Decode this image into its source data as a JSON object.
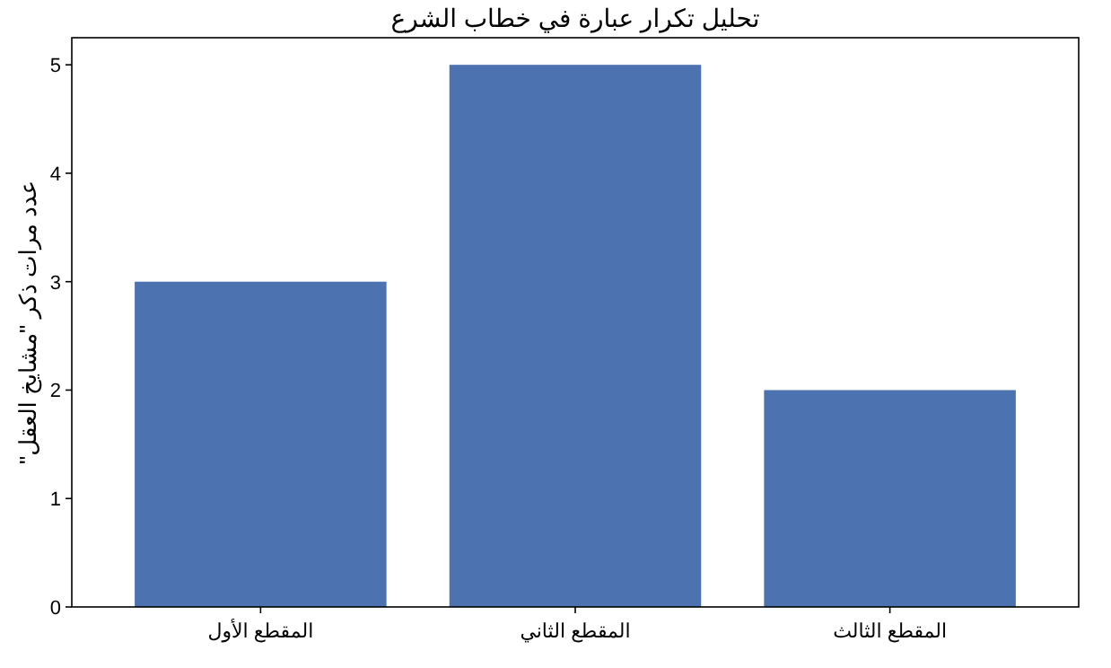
{
  "chart_data": {
    "type": "bar",
    "title": "تحليل تكرار عبارة في خطاب الشرع",
    "ylabel": "عدد مرات ذكر \"مشايخ العقل\"",
    "categories": [
      "المقطع الأول",
      "المقطع الثاني",
      "المقطع الثالث"
    ],
    "values": [
      3,
      5,
      2
    ],
    "color": "#4c72b0",
    "ylim": [
      0,
      5.25
    ],
    "yticks": [
      0,
      1,
      2,
      3,
      4,
      5
    ],
    "grid": false
  }
}
